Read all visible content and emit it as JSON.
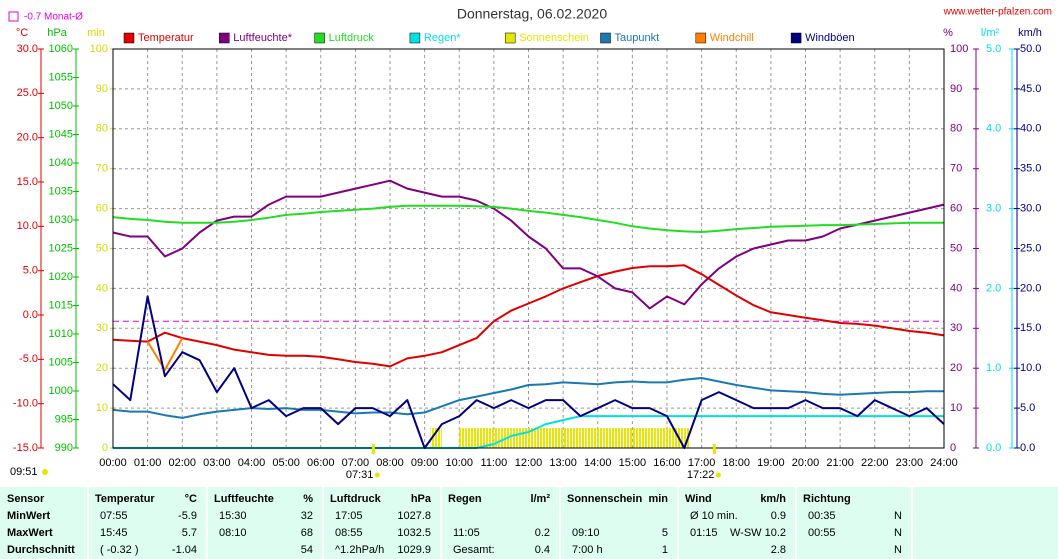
{
  "chart_data": {
    "type": "line",
    "title": "Donnerstag, 06.02.2020",
    "source": "www.wetter-pfalzen.com",
    "time_label": "09:51",
    "reference": {
      "value": -0.7,
      "label": "-0.7 Monat-Ø",
      "axis": "°C",
      "color": "#e000e0"
    },
    "sunrise": {
      "value": 7.52,
      "label": "07:31"
    },
    "sunset": {
      "value": 17.37,
      "label": "17:22"
    },
    "xlim": [
      0,
      24
    ],
    "xticks": [
      {
        "value": 0,
        "label": "00:00"
      },
      {
        "value": 1,
        "label": "01:00"
      },
      {
        "value": 2,
        "label": "02:00"
      },
      {
        "value": 3,
        "label": "03:00"
      },
      {
        "value": 4,
        "label": "04:00"
      },
      {
        "value": 5,
        "label": "05:00"
      },
      {
        "value": 6,
        "label": "06:00"
      },
      {
        "value": 7,
        "label": "07:00"
      },
      {
        "value": 8,
        "label": "08:00"
      },
      {
        "value": 9,
        "label": "09:00"
      },
      {
        "value": 10,
        "label": "10:00"
      },
      {
        "value": 11,
        "label": "11:00"
      },
      {
        "value": 12,
        "label": "12:00"
      },
      {
        "value": 13,
        "label": "13:00"
      },
      {
        "value": 14,
        "label": "14:00"
      },
      {
        "value": 15,
        "label": "15:00"
      },
      {
        "value": 16,
        "label": "16:00"
      },
      {
        "value": 17,
        "label": "17:00"
      },
      {
        "value": 18,
        "label": "18:00"
      },
      {
        "value": 19,
        "label": "19:00"
      },
      {
        "value": 20,
        "label": "20:00"
      },
      {
        "value": 21,
        "label": "21:00"
      },
      {
        "value": 22,
        "label": "22:00"
      },
      {
        "value": 23,
        "label": "23:00"
      },
      {
        "value": 24,
        "label": "24:00"
      }
    ],
    "x": [
      0,
      0.5,
      1,
      1.5,
      2,
      2.5,
      3,
      3.5,
      4,
      4.5,
      5,
      5.5,
      6,
      6.5,
      7,
      7.5,
      8,
      8.5,
      9,
      9.5,
      10,
      10.5,
      11,
      11.5,
      12,
      12.5,
      13,
      13.5,
      14,
      14.5,
      15,
      15.5,
      16,
      16.5,
      17,
      17.5,
      18,
      18.5,
      19,
      19.5,
      20,
      20.5,
      21,
      21.5,
      22,
      22.5,
      23,
      23.5,
      24
    ],
    "axes": [
      {
        "unit": "°C",
        "color": "#e00000",
        "side": "left",
        "lim": [
          -15,
          30
        ],
        "ticks": [
          {
            "value": 30,
            "label": "30.0"
          },
          {
            "value": 25,
            "label": "25.0"
          },
          {
            "value": 20,
            "label": "20.0"
          },
          {
            "value": 15,
            "label": "15.0"
          },
          {
            "value": 10,
            "label": "10.0"
          },
          {
            "value": 5,
            "label": "5.0"
          },
          {
            "value": 0,
            "label": "0.0"
          },
          {
            "value": -5,
            "label": "-5.0"
          },
          {
            "value": -10,
            "label": "-10.0"
          },
          {
            "value": -15,
            "label": "-15.0"
          }
        ]
      },
      {
        "unit": "hPa",
        "color": "#00c000",
        "side": "left",
        "lim": [
          990,
          1060
        ],
        "ticks": [
          1060,
          1055,
          1050,
          1045,
          1040,
          1035,
          1030,
          1025,
          1020,
          1015,
          1010,
          1005,
          1000,
          995,
          990
        ]
      },
      {
        "unit": "min",
        "color": "#d8d800",
        "side": "left",
        "lim": [
          0,
          100
        ],
        "ticks": [
          100,
          90,
          80,
          70,
          60,
          50,
          40,
          30,
          20,
          10,
          0
        ]
      },
      {
        "unit": "%",
        "color": "#800080",
        "side": "right",
        "lim": [
          0,
          100
        ],
        "grid": true,
        "ticks": [
          100,
          90,
          80,
          70,
          60,
          50,
          40,
          30,
          20,
          10,
          0
        ]
      },
      {
        "unit": "l/m²",
        "color": "#00e0e0",
        "side": "right",
        "lim": [
          0,
          5
        ],
        "ticks": [
          {
            "value": 5,
            "label": "5.0"
          },
          {
            "value": 4,
            "label": "4.0"
          },
          {
            "value": 3,
            "label": "3.0"
          },
          {
            "value": 2,
            "label": "2.0"
          },
          {
            "value": 1,
            "label": "1.0"
          },
          {
            "value": 0,
            "label": "0.0"
          }
        ]
      },
      {
        "unit": "km/h",
        "color": "#000080",
        "side": "right",
        "lim": [
          0,
          50
        ],
        "ticks": [
          {
            "value": 50,
            "label": "50.0"
          },
          {
            "value": 45,
            "label": "45.0"
          },
          {
            "value": 40,
            "label": "40.0"
          },
          {
            "value": 35,
            "label": "35.0"
          },
          {
            "value": 30,
            "label": "30.0"
          },
          {
            "value": 25,
            "label": "25.0"
          },
          {
            "value": 20,
            "label": "20.0"
          },
          {
            "value": 15,
            "label": "15.0"
          },
          {
            "value": 10,
            "label": "10.0"
          },
          {
            "value": 5,
            "label": "5.0"
          },
          {
            "value": 0,
            "label": "0.0"
          }
        ]
      }
    ],
    "series": [
      {
        "name": "Temperatur",
        "color": "#e00000",
        "axis": "°C",
        "type": "line",
        "values": [
          -2.8,
          -2.9,
          -3.0,
          -2.0,
          -2.6,
          -3.0,
          -3.4,
          -3.9,
          -4.2,
          -4.5,
          -4.6,
          -4.6,
          -4.7,
          -5.0,
          -5.3,
          -5.5,
          -5.8,
          -4.9,
          -4.6,
          -4.2,
          -3.4,
          -2.6,
          -0.7,
          0.5,
          1.3,
          2.1,
          3.0,
          3.7,
          4.4,
          4.9,
          5.3,
          5.5,
          5.5,
          5.6,
          4.6,
          3.4,
          2.2,
          1.1,
          0.3,
          0.0,
          -0.3,
          -0.6,
          -0.9,
          -1.0,
          -1.2,
          -1.5,
          -1.8,
          -2.0,
          -2.3
        ]
      },
      {
        "name": "Luftfeuchte*",
        "color": "#800080",
        "axis": "%",
        "type": "line",
        "values": [
          54,
          53,
          53,
          48,
          50,
          54,
          57,
          58,
          58,
          61,
          63,
          63,
          63,
          64,
          65,
          66,
          67,
          65,
          64,
          63,
          63,
          62,
          60,
          57,
          53,
          50,
          45,
          45,
          43,
          40,
          39,
          35,
          38,
          36,
          41,
          45,
          48,
          50,
          51,
          52,
          52,
          53,
          55,
          56,
          57,
          58,
          59,
          60,
          61
        ]
      },
      {
        "name": "Luftdruck",
        "color": "#22dd22",
        "axis": "hPa",
        "type": "line",
        "values": [
          1030.5,
          1030.2,
          1030.0,
          1029.7,
          1029.5,
          1029.5,
          1029.5,
          1029.7,
          1030.0,
          1030.4,
          1030.9,
          1031.1,
          1031.4,
          1031.6,
          1031.8,
          1032.0,
          1032.3,
          1032.5,
          1032.5,
          1032.5,
          1032.5,
          1032.4,
          1032.3,
          1032.0,
          1031.6,
          1031.3,
          1030.9,
          1030.5,
          1030.0,
          1029.5,
          1028.9,
          1028.5,
          1028.2,
          1028.0,
          1027.9,
          1028.1,
          1028.4,
          1028.6,
          1028.8,
          1028.9,
          1029.0,
          1029.1,
          1029.1,
          1029.2,
          1029.3,
          1029.4,
          1029.5,
          1029.5,
          1029.5
        ]
      },
      {
        "name": "Regen*",
        "color": "#00e0e0",
        "axis": "l/m²",
        "type": "line",
        "values": [
          0,
          0,
          0,
          0,
          0,
          0,
          0,
          0,
          0,
          0,
          0,
          0,
          0,
          0,
          0,
          0,
          0,
          0,
          0,
          0,
          0,
          0,
          0.05,
          0.15,
          0.2,
          0.3,
          0.35,
          0.4,
          0.4,
          0.4,
          0.4,
          0.4,
          0.4,
          0.4,
          0.4,
          0.4,
          0.4,
          0.4,
          0.4,
          0.4,
          0.4,
          0.4,
          0.4,
          0.4,
          0.4,
          0.4,
          0.4,
          0.4,
          0.4
        ]
      },
      {
        "name": "Sonnenschein",
        "color": "#e6e600",
        "axis": "min",
        "type": "bar",
        "x": [
          9.17,
          9.33,
          10.0,
          10.17,
          10.33,
          10.5,
          10.67,
          10.83,
          11.0,
          11.17,
          11.33,
          11.5,
          11.67,
          11.83,
          12.0,
          12.17,
          12.33,
          12.5,
          12.67,
          12.83,
          13.0,
          13.17,
          13.33,
          13.5,
          13.67,
          13.83,
          14.0,
          14.17,
          14.33,
          14.5,
          14.67,
          14.83,
          15.0,
          15.17,
          15.33,
          15.5,
          15.67,
          15.83,
          16.0,
          16.17,
          16.33,
          16.5
        ],
        "values": [
          5,
          5,
          5,
          5,
          5,
          5,
          5,
          5,
          5,
          5,
          5,
          5,
          5,
          5,
          5,
          5,
          5,
          5,
          5,
          5,
          5,
          5,
          5,
          5,
          5,
          5,
          5,
          5,
          5,
          5,
          5,
          5,
          5,
          5,
          5,
          5,
          5,
          5,
          5,
          5,
          5,
          5
        ]
      },
      {
        "name": "Taupunkt",
        "color": "#1a7ab0",
        "axis": "°C",
        "type": "line",
        "values": [
          -10.7,
          -10.9,
          -10.9,
          -11.3,
          -11.6,
          -11.2,
          -10.9,
          -10.7,
          -10.5,
          -10.6,
          -10.5,
          -10.7,
          -10.7,
          -10.9,
          -11.1,
          -11.0,
          -11.0,
          -11.2,
          -11.0,
          -10.3,
          -9.6,
          -9.2,
          -8.8,
          -8.4,
          -7.9,
          -7.8,
          -7.6,
          -7.7,
          -7.8,
          -7.6,
          -7.5,
          -7.6,
          -7.6,
          -7.3,
          -7.1,
          -7.5,
          -7.9,
          -8.2,
          -8.5,
          -8.6,
          -8.7,
          -8.9,
          -9.0,
          -8.9,
          -8.8,
          -8.7,
          -8.7,
          -8.6,
          -8.6
        ]
      },
      {
        "name": "Windchill",
        "color": "#ff8000",
        "axis": "°C",
        "type": "line",
        "values": [
          null,
          null,
          -3.0,
          -6.2,
          -2.6,
          null,
          null,
          null,
          null,
          null,
          null,
          null,
          null,
          null,
          null,
          null,
          null,
          null,
          null,
          null,
          null,
          null,
          null,
          null,
          null,
          null,
          null,
          null,
          null,
          null,
          null,
          null,
          null,
          null,
          null,
          null,
          null,
          null,
          null,
          null,
          null,
          null,
          null,
          null,
          null,
          null,
          null,
          null,
          null
        ]
      },
      {
        "name": "Windböen",
        "color": "#000080",
        "axis": "km/h",
        "type": "line",
        "values": [
          8,
          6,
          19,
          9,
          12,
          11,
          7,
          10,
          5,
          6,
          4,
          5,
          5,
          3,
          5,
          5,
          4,
          6,
          0,
          3,
          4,
          6,
          5,
          6,
          5,
          6,
          6,
          4,
          5,
          6,
          5,
          5,
          4,
          0,
          6,
          7,
          6,
          5,
          5,
          5,
          6,
          5,
          5,
          4,
          6,
          5,
          4,
          5,
          3
        ]
      }
    ]
  },
  "table": {
    "header": [
      {
        "name": "Sensor"
      },
      {
        "name": "Temperatur",
        "unit": "°C"
      },
      {
        "name": "Luftfeuchte",
        "unit": "%"
      },
      {
        "name": "Luftdruck",
        "unit": "hPa"
      },
      {
        "name": "Regen",
        "unit": "l/m²"
      },
      {
        "name": "Sonnenschein",
        "unit": "min"
      },
      {
        "name": "Wind",
        "unit": "km/h"
      },
      {
        "name": "Richtung"
      }
    ],
    "rows": [
      {
        "label": "MinWert",
        "cells": [
          [
            "07:55",
            "-5.9"
          ],
          [
            "15:30",
            "32"
          ],
          [
            "17:05",
            "1027.8"
          ],
          [
            null,
            null
          ],
          [
            null,
            null
          ],
          [
            "Ø 10 min.",
            "0.9"
          ],
          [
            "00:35",
            "N"
          ]
        ]
      },
      {
        "label": "MaxWert",
        "cells": [
          [
            "15:45",
            "5.7"
          ],
          [
            "08:10",
            "68"
          ],
          [
            "08:55",
            "1032.5"
          ],
          [
            "11:05",
            "0.2"
          ],
          [
            "09:10",
            "5"
          ],
          [
            "01:15",
            "W-SW 10.2"
          ],
          [
            "00:55",
            "N"
          ]
        ]
      },
      {
        "label": "Durchschnitt",
        "cells": [
          [
            "( -0.32 )",
            "-1.04"
          ],
          [
            null,
            "54"
          ],
          [
            "^1.2hPa/h",
            "1029.9"
          ],
          [
            "Gesamt:",
            "0.4"
          ],
          [
            "7:00 h",
            "1"
          ],
          [
            null,
            "2.8"
          ],
          [
            null,
            "N"
          ]
        ]
      }
    ]
  }
}
